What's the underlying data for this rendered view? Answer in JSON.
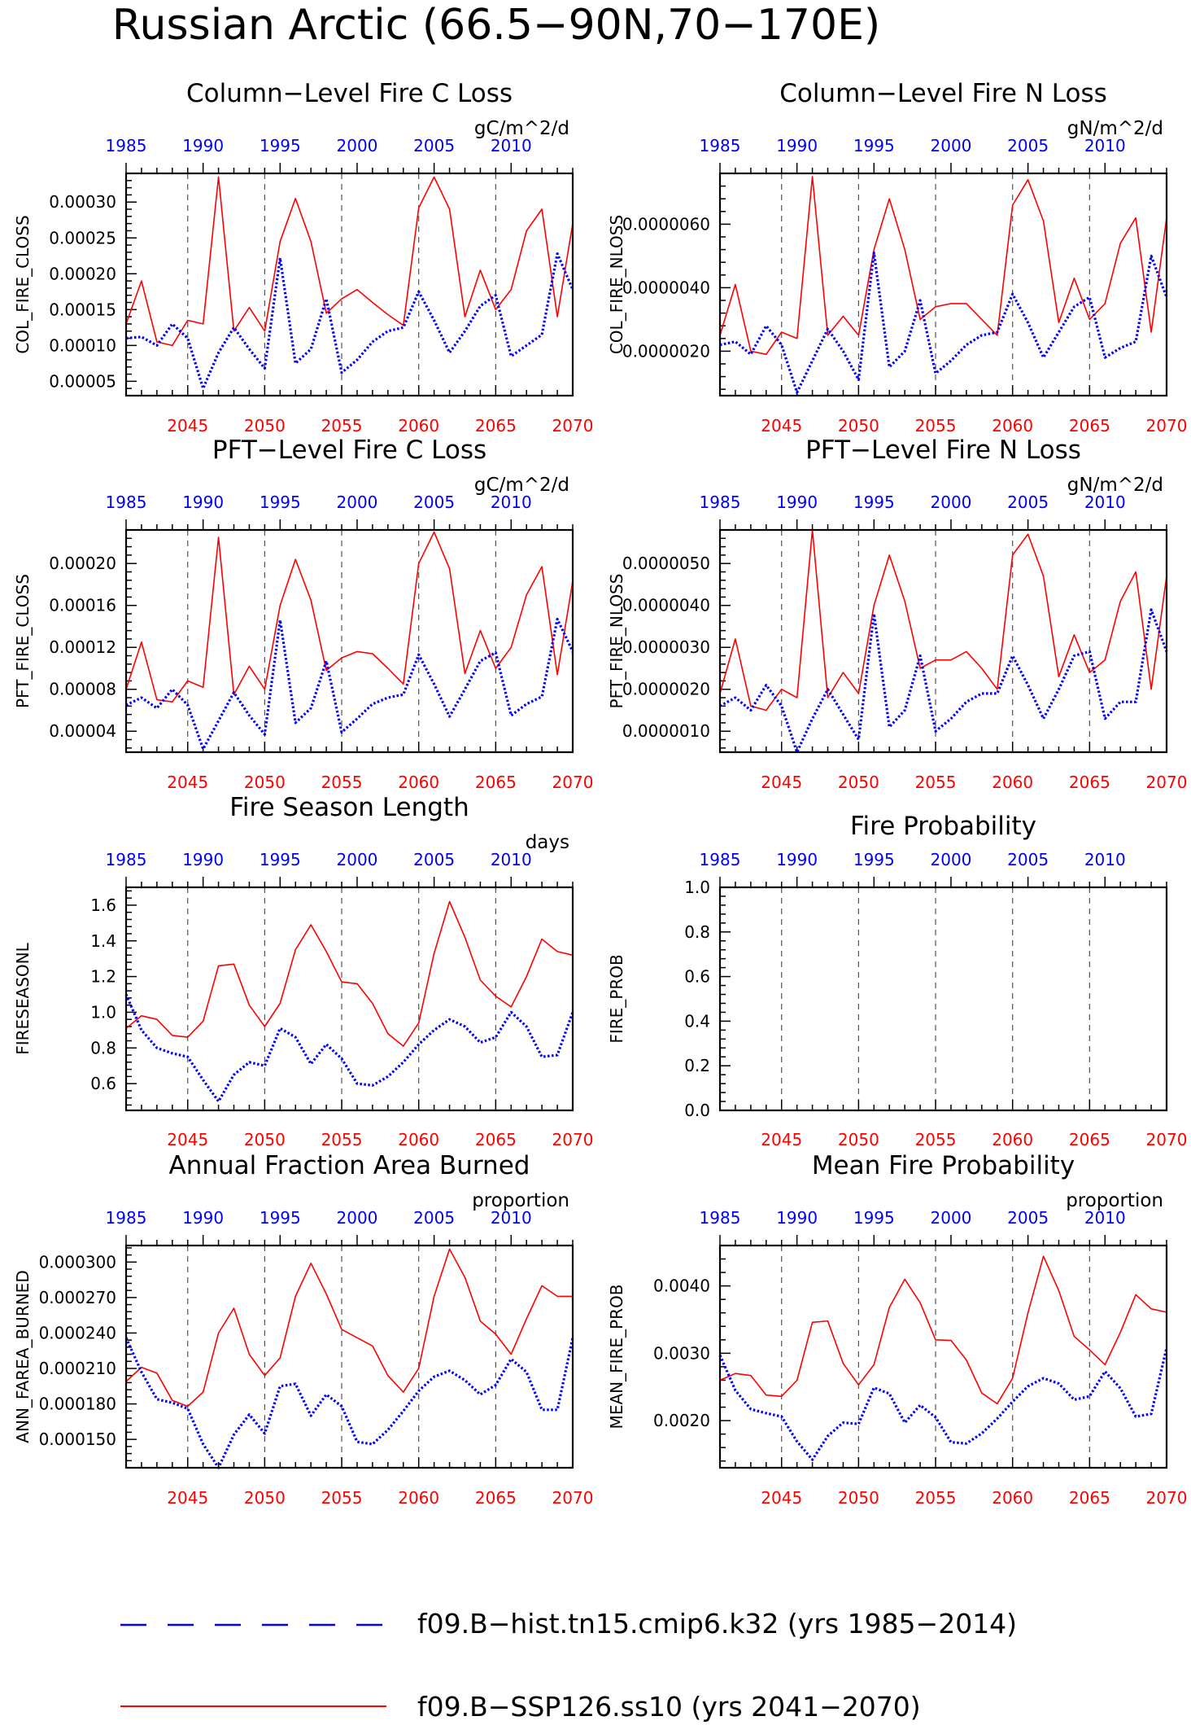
{
  "figure": {
    "title": "Russian Arctic (66.5−90N,70−170E)",
    "legend": [
      {
        "label": "f09.B−hist.tn15.cmip6.k32 (yrs 1985−2014)",
        "color": "#0000ff",
        "style": "dashed"
      },
      {
        "label": "f09.B−SSP126.ss10 (yrs 2041−2070)",
        "color": "#ff0000",
        "style": "solid"
      }
    ]
  },
  "chart_data": [
    {
      "type": "line",
      "title": "Column−Level Fire C Loss",
      "units": "gC/m^2/d",
      "ylabel": "COL_FIRE_CLOSS",
      "ylim": [
        3e-05,
        0.00034
      ],
      "yticks": [
        5e-05,
        0.0001,
        0.00015,
        0.0002,
        0.00025,
        0.0003
      ],
      "ytick_labels": [
        "0.00005",
        "0.00010",
        "0.00015",
        "0.00020",
        "0.00025",
        "0.00030"
      ],
      "x_bottom": [
        2041,
        2070
      ],
      "x_bottom_ticks": [
        2045,
        2050,
        2055,
        2060,
        2065,
        2070
      ],
      "x_top": [
        1985,
        2014
      ],
      "x_top_ticks": [
        1985,
        1990,
        1995,
        2000,
        2005,
        2010
      ],
      "series": [
        {
          "axis": "bottom",
          "color": "#ff0000",
          "style": "solid",
          "values": [
            0.00013,
            0.00019,
            0.000105,
            0.0001,
            0.000135,
            0.00013,
            0.000335,
            0.00012,
            0.000153,
            0.00012,
            0.000245,
            0.000305,
            0.000245,
            0.000145,
            0.000165,
            0.000178,
            0.00016,
            0.000143,
            0.000128,
            0.000292,
            0.000335,
            0.00029,
            0.00014,
            0.000205,
            0.00015,
            0.000178,
            0.00026,
            0.00029,
            0.00014,
            0.00027
          ]
        },
        {
          "axis": "top",
          "color": "#0000ff",
          "style": "dotted",
          "values": [
            0.00011,
            0.000112,
            0.0001,
            0.00013,
            0.00011,
            4e-05,
            9e-05,
            0.000125,
            9.5e-05,
            6.8e-05,
            0.000222,
            7.5e-05,
            9.5e-05,
            0.000165,
            6.2e-05,
            8e-05,
            0.000105,
            0.00012,
            0.000125,
            0.000175,
            0.000135,
            9e-05,
            0.00012,
            0.000155,
            0.00017,
            8.5e-05,
            0.0001,
            0.000115,
            0.000228,
            0.000178
          ]
        }
      ]
    },
    {
      "type": "line",
      "title": "Column−Level Fire N Loss",
      "units": "gN/m^2/d",
      "ylabel": "COL_FIRE_NLOSS",
      "ylim": [
        6e-07,
        7.6e-06
      ],
      "yticks": [
        2e-06,
        4e-06,
        6e-06
      ],
      "ytick_labels": [
        "0.0000020",
        "0.0000040",
        "0.0000060"
      ],
      "x_bottom": [
        2041,
        2070
      ],
      "x_bottom_ticks": [
        2045,
        2050,
        2055,
        2060,
        2065,
        2070
      ],
      "x_top": [
        1985,
        2014
      ],
      "x_top_ticks": [
        1985,
        1990,
        1995,
        2000,
        2005,
        2010
      ],
      "series": [
        {
          "axis": "bottom",
          "color": "#ff0000",
          "style": "solid",
          "values": [
            2.5e-06,
            4.1e-06,
            2e-06,
            1.9e-06,
            2.6e-06,
            2.4e-06,
            7.5e-06,
            2.5e-06,
            3.1e-06,
            2.5e-06,
            5.2e-06,
            6.8e-06,
            5.2e-06,
            3e-06,
            3.4e-06,
            3.5e-06,
            3.5e-06,
            3e-06,
            2.5e-06,
            6.6e-06,
            7.4e-06,
            6.1e-06,
            2.9e-06,
            4.3e-06,
            3e-06,
            3.5e-06,
            5.4e-06,
            6.2e-06,
            2.6e-06,
            6.2e-06
          ]
        },
        {
          "axis": "top",
          "color": "#0000ff",
          "style": "dotted",
          "values": [
            2.2e-06,
            2.3e-06,
            1.9e-06,
            2.8e-06,
            2.2e-06,
            7e-07,
            1.7e-06,
            2.7e-06,
            2e-06,
            1.1e-06,
            5.1e-06,
            1.5e-06,
            2e-06,
            3.6e-06,
            1.3e-06,
            1.7e-06,
            2.2e-06,
            2.5e-06,
            2.6e-06,
            3.8e-06,
            2.9e-06,
            1.8e-06,
            2.6e-06,
            3.4e-06,
            3.7e-06,
            1.8e-06,
            2.1e-06,
            2.3e-06,
            5e-06,
            3.7e-06
          ]
        }
      ]
    },
    {
      "type": "line",
      "title": "PFT−Level Fire C Loss",
      "units": "gC/m^2/d",
      "ylabel": "PFT_FIRE_CLOSS",
      "ylim": [
        2e-05,
        0.000232
      ],
      "yticks": [
        4e-05,
        8e-05,
        0.00012,
        0.00016,
        0.0002
      ],
      "ytick_labels": [
        "0.00004",
        "0.00008",
        "0.00012",
        "0.00016",
        "0.00020"
      ],
      "x_bottom": [
        2041,
        2070
      ],
      "x_bottom_ticks": [
        2045,
        2050,
        2055,
        2060,
        2065,
        2070
      ],
      "x_top": [
        1985,
        2014
      ],
      "x_top_ticks": [
        1985,
        1990,
        1995,
        2000,
        2005,
        2010
      ],
      "series": [
        {
          "axis": "bottom",
          "color": "#ff0000",
          "style": "solid",
          "values": [
            8e-05,
            0.000125,
            7e-05,
            6.8e-05,
            8.8e-05,
            8.2e-05,
            0.000225,
            7.5e-05,
            0.000102,
            8e-05,
            0.00016,
            0.000204,
            0.000165,
            9.8e-05,
            0.00011,
            0.000116,
            0.000114,
            0.0001,
            8.5e-05,
            0.0002,
            0.00023,
            0.000195,
            9.5e-05,
            0.000136,
            0.0001,
            0.00012,
            0.00017,
            0.000197,
            9.4e-05,
            0.000183
          ]
        },
        {
          "axis": "top",
          "color": "#0000ff",
          "style": "dotted",
          "values": [
            6.5e-05,
            7.2e-05,
            6.2e-05,
            8e-05,
            6.5e-05,
            2.3e-05,
            5e-05,
            7.7e-05,
            5.5e-05,
            3.7e-05,
            0.000146,
            4.8e-05,
            6.2e-05,
            0.000107,
            3.9e-05,
            5.2e-05,
            6.6e-05,
            7.2e-05,
            7.5e-05,
            0.000113,
            8.5e-05,
            5.4e-05,
            8e-05,
            0.000107,
            0.000115,
            5.5e-05,
            6.6e-05,
            7.3e-05,
            0.000147,
            0.000116
          ]
        }
      ]
    },
    {
      "type": "line",
      "title": "PFT−Level Fire N Loss",
      "units": "gN/m^2/d",
      "ylabel": "PFT_FIRE_NLOSS",
      "ylim": [
        5e-07,
        5.8e-06
      ],
      "yticks": [
        1e-06,
        2e-06,
        3e-06,
        4e-06,
        5e-06
      ],
      "ytick_labels": [
        "0.0000010",
        "0.0000020",
        "0.0000030",
        "0.0000040",
        "0.0000050"
      ],
      "x_bottom": [
        2041,
        2070
      ],
      "x_bottom_ticks": [
        2045,
        2050,
        2055,
        2060,
        2065,
        2070
      ],
      "x_top": [
        1985,
        2014
      ],
      "x_top_ticks": [
        1985,
        1990,
        1995,
        2000,
        2005,
        2010
      ],
      "series": [
        {
          "axis": "bottom",
          "color": "#ff0000",
          "style": "solid",
          "values": [
            1.9e-06,
            3.2e-06,
            1.6e-06,
            1.5e-06,
            2e-06,
            1.8e-06,
            5.8e-06,
            1.8e-06,
            2.4e-06,
            1.9e-06,
            4e-06,
            5.2e-06,
            4.1e-06,
            2.5e-06,
            2.7e-06,
            2.7e-06,
            2.9e-06,
            2.5e-06,
            2e-06,
            5.2e-06,
            5.7e-06,
            4.7e-06,
            2.3e-06,
            3.3e-06,
            2.4e-06,
            2.7e-06,
            4.1e-06,
            4.8e-06,
            2e-06,
            4.7e-06
          ]
        },
        {
          "axis": "top",
          "color": "#0000ff",
          "style": "dotted",
          "values": [
            1.6e-06,
            1.8e-06,
            1.5e-06,
            2.1e-06,
            1.6e-06,
            5e-07,
            1.3e-06,
            2e-06,
            1.4e-06,
            8e-07,
            3.8e-06,
            1.1e-06,
            1.5e-06,
            2.8e-06,
            1e-06,
            1.3e-06,
            1.7e-06,
            1.9e-06,
            1.9e-06,
            2.8e-06,
            2.1e-06,
            1.3e-06,
            2e-06,
            2.8e-06,
            2.9e-06,
            1.3e-06,
            1.7e-06,
            1.7e-06,
            3.9e-06,
            2.9e-06
          ]
        }
      ]
    },
    {
      "type": "line",
      "title": "Fire Season Length",
      "units": "days",
      "ylabel": "FIRESEASONL",
      "ylim": [
        0.45,
        1.7
      ],
      "yticks": [
        0.6,
        0.8,
        1.0,
        1.2,
        1.4,
        1.6
      ],
      "ytick_labels": [
        "0.6",
        "0.8",
        "1.0",
        "1.2",
        "1.4",
        "1.6"
      ],
      "x_bottom": [
        2041,
        2070
      ],
      "x_bottom_ticks": [
        2045,
        2050,
        2055,
        2060,
        2065,
        2070
      ],
      "x_top": [
        1985,
        2014
      ],
      "x_top_ticks": [
        1985,
        1990,
        1995,
        2000,
        2005,
        2010
      ],
      "series": [
        {
          "axis": "bottom",
          "color": "#ff0000",
          "style": "solid",
          "values": [
            0.91,
            0.98,
            0.96,
            0.87,
            0.86,
            0.95,
            1.26,
            1.27,
            1.04,
            0.92,
            1.05,
            1.35,
            1.49,
            1.34,
            1.17,
            1.16,
            1.05,
            0.88,
            0.81,
            0.94,
            1.33,
            1.62,
            1.42,
            1.18,
            1.09,
            1.03,
            1.2,
            1.41,
            1.34,
            1.32
          ]
        },
        {
          "axis": "top",
          "color": "#0000ff",
          "style": "dotted",
          "values": [
            1.1,
            0.9,
            0.8,
            0.77,
            0.75,
            0.62,
            0.5,
            0.65,
            0.72,
            0.7,
            0.91,
            0.86,
            0.71,
            0.82,
            0.74,
            0.6,
            0.59,
            0.64,
            0.72,
            0.82,
            0.9,
            0.96,
            0.92,
            0.83,
            0.86,
            1.0,
            0.92,
            0.75,
            0.76,
            1.0
          ]
        }
      ]
    },
    {
      "type": "line",
      "title": "Fire Probability",
      "units": "",
      "ylabel": "FIRE_PROB",
      "ylim": [
        0.0,
        1.0
      ],
      "yticks": [
        0.0,
        0.2,
        0.4,
        0.6,
        0.8,
        1.0
      ],
      "ytick_labels": [
        "0.0",
        "0.2",
        "0.4",
        "0.6",
        "0.8",
        "1.0"
      ],
      "x_bottom": [
        2041,
        2070
      ],
      "x_bottom_ticks": [
        2045,
        2050,
        2055,
        2060,
        2065,
        2070
      ],
      "x_top": [
        1985,
        2014
      ],
      "x_top_ticks": [
        1985,
        1990,
        1995,
        2000,
        2005,
        2010
      ],
      "series": []
    },
    {
      "type": "line",
      "title": "Annual Fraction Area Burned",
      "units": "proportion",
      "ylabel": "ANN_FAREA_BURNED",
      "ylim": [
        0.000126,
        0.000314
      ],
      "yticks": [
        0.00015,
        0.00018,
        0.00021,
        0.00024,
        0.00027,
        0.0003
      ],
      "ytick_labels": [
        "0.000150",
        "0.000180",
        "0.000210",
        "0.000240",
        "0.000270",
        "0.000300"
      ],
      "x_bottom": [
        2041,
        2070
      ],
      "x_bottom_ticks": [
        2045,
        2050,
        2055,
        2060,
        2065,
        2070
      ],
      "x_top": [
        1985,
        2014
      ],
      "x_top_ticks": [
        1985,
        1990,
        1995,
        2000,
        2005,
        2010
      ],
      "series": [
        {
          "axis": "bottom",
          "color": "#ff0000",
          "style": "solid",
          "values": [
            0.000199,
            0.000211,
            0.000206,
            0.000183,
            0.000178,
            0.00019,
            0.00024,
            0.000261,
            0.000222,
            0.000204,
            0.000219,
            0.000271,
            0.000299,
            0.000273,
            0.000243,
            0.000236,
            0.000229,
            0.000204,
            0.00019,
            0.00021,
            0.000271,
            0.000311,
            0.000287,
            0.00025,
            0.000239,
            0.000222,
            0.000252,
            0.00028,
            0.000271,
            0.000271
          ]
        },
        {
          "axis": "top",
          "color": "#0000ff",
          "style": "dotted",
          "values": [
            0.000236,
            0.000207,
            0.000184,
            0.000181,
            0.000176,
            0.000146,
            0.000126,
            0.000154,
            0.000171,
            0.000155,
            0.000195,
            0.000197,
            0.00017,
            0.000188,
            0.000178,
            0.000148,
            0.000146,
            0.000158,
            0.000174,
            0.000191,
            0.000203,
            0.000208,
            0.0002,
            0.000188,
            0.000196,
            0.000218,
            0.000207,
            0.000175,
            0.000175,
            0.000236
          ]
        }
      ]
    },
    {
      "type": "line",
      "title": "Mean Fire Probability",
      "units": "proportion",
      "ylabel": "MEAN_FIRE_PROB",
      "ylim": [
        0.0013,
        0.0046
      ],
      "yticks": [
        0.002,
        0.003,
        0.004
      ],
      "ytick_labels": [
        "0.0020",
        "0.0030",
        "0.0040"
      ],
      "x_bottom": [
        2041,
        2070
      ],
      "x_bottom_ticks": [
        2045,
        2050,
        2055,
        2060,
        2065,
        2070
      ],
      "x_top": [
        1985,
        2014
      ],
      "x_top_ticks": [
        1985,
        1990,
        1995,
        2000,
        2005,
        2010
      ],
      "series": [
        {
          "axis": "bottom",
          "color": "#ff0000",
          "style": "solid",
          "values": [
            0.0026,
            0.0027,
            0.00267,
            0.00238,
            0.00236,
            0.0026,
            0.00346,
            0.00348,
            0.00285,
            0.00253,
            0.00283,
            0.00368,
            0.0041,
            0.00375,
            0.0032,
            0.00319,
            0.0029,
            0.00241,
            0.00225,
            0.00263,
            0.0036,
            0.00444,
            0.00393,
            0.00325,
            0.00305,
            0.00283,
            0.00331,
            0.00387,
            0.00366,
            0.00361
          ]
        },
        {
          "axis": "top",
          "color": "#0000ff",
          "style": "dotted",
          "values": [
            0.00297,
            0.00245,
            0.00217,
            0.00211,
            0.00206,
            0.00169,
            0.00142,
            0.00177,
            0.00197,
            0.00195,
            0.00249,
            0.0024,
            0.00197,
            0.00223,
            0.00205,
            0.00168,
            0.00166,
            0.00181,
            0.00203,
            0.00228,
            0.00251,
            0.00263,
            0.00255,
            0.00231,
            0.00236,
            0.00273,
            0.00248,
            0.00206,
            0.0021,
            0.00308
          ]
        }
      ]
    }
  ]
}
